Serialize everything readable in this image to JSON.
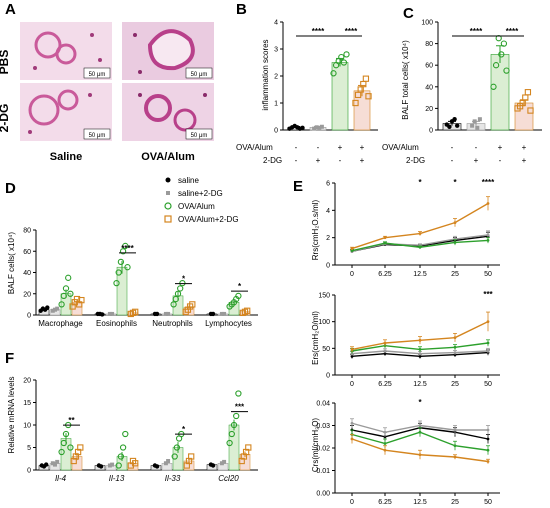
{
  "colors": {
    "saline": "#000000",
    "saline_2dg": "#9a9a9a",
    "ova": "#2ca02c",
    "ova_2dg": "#d4851f",
    "ova_bar": "#dbeed3",
    "ova_2dg_bar": "#f6ddd6",
    "tissue": "#c95a9a"
  },
  "panel_a": {
    "label": "A",
    "row_labels": [
      "PBS",
      "2-DG"
    ],
    "col_labels": [
      "Saline",
      "OVA/Alum"
    ],
    "scale_bar": "50 μm"
  },
  "treatment_table": {
    "rows": [
      {
        "label": "OVA/Alum",
        "marks": [
          "-",
          "-",
          "+",
          "+"
        ]
      },
      {
        "label": "2-DG",
        "marks": [
          "-",
          "+",
          "-",
          "+"
        ]
      }
    ]
  },
  "chart_data": [
    {
      "id": "B",
      "label": "B",
      "type": "bar",
      "ylabel": "inflammation scores",
      "ylim": [
        0,
        4
      ],
      "yticks": [
        "0",
        "1",
        "2",
        "3",
        "4"
      ],
      "means": [
        0.1,
        0.1,
        2.5,
        1.45
      ],
      "errors": [
        0.03,
        0.03,
        0.15,
        0.2
      ],
      "points": [
        [
          0.05,
          0.1,
          0.15,
          0.1,
          0.05,
          0.08
        ],
        [
          0.05,
          0.1,
          0.08,
          0.12
        ],
        [
          2.1,
          2.4,
          2.55,
          2.7,
          2.5,
          2.8
        ],
        [
          1.0,
          1.3,
          1.5,
          1.7,
          1.9,
          1.25
        ]
      ],
      "significance": [
        {
          "from": 0,
          "to": 2,
          "label": "****"
        },
        {
          "from": 2,
          "to": 3,
          "label": "****"
        }
      ]
    },
    {
      "id": "C",
      "label": "C",
      "type": "bar",
      "ylabel": "BALF total cells( x10⁴)",
      "ylim": [
        0,
        100
      ],
      "yticks": [
        "0",
        "20",
        "40",
        "60",
        "80",
        "100"
      ],
      "means": [
        6,
        6,
        70,
        25
      ],
      "errors": [
        2,
        2,
        8,
        3
      ],
      "points": [
        [
          5,
          3,
          8,
          10,
          4
        ],
        [
          4,
          8,
          2,
          10
        ],
        [
          40,
          60,
          85,
          70,
          80,
          55
        ],
        [
          20,
          22,
          25,
          30,
          35,
          18
        ]
      ],
      "significance": [
        {
          "from": 0,
          "to": 2,
          "label": "****"
        },
        {
          "from": 2,
          "to": 3,
          "label": "****"
        }
      ]
    },
    {
      "id": "D",
      "label": "D",
      "type": "bar",
      "ylabel": "BALF  cells( x10⁴)",
      "ylim": [
        0,
        80
      ],
      "yticks": [
        "0",
        "20",
        "40",
        "60",
        "80"
      ],
      "categories": [
        "Macrophage",
        "Eosinophils",
        "Neutrophils",
        "Lymphocytes"
      ],
      "legend": [
        "saline",
        "saline+2-DG",
        "OVA/Alum",
        "OVA/Alum+2-DG"
      ],
      "means": [
        [
          5,
          5,
          20,
          12
        ],
        [
          1,
          1,
          45,
          2
        ],
        [
          1,
          1,
          18,
          7
        ],
        [
          1,
          1,
          12,
          3
        ]
      ],
      "errors": [
        [
          1,
          1,
          4,
          2
        ],
        [
          0.5,
          0.5,
          6,
          1
        ],
        [
          0.5,
          0.5,
          4,
          2
        ],
        [
          0.5,
          0.5,
          3,
          1
        ]
      ],
      "points": [
        [
          [
            4,
            6,
            5,
            7
          ],
          [
            4,
            5,
            6
          ],
          [
            10,
            18,
            25,
            35,
            20
          ],
          [
            8,
            12,
            15,
            10,
            14
          ]
        ],
        [
          [
            1,
            1,
            0.5
          ],
          [
            1,
            1
          ],
          [
            30,
            40,
            50,
            60,
            65,
            45
          ],
          [
            1,
            2,
            3
          ]
        ],
        [
          [
            1,
            1
          ],
          [
            1,
            1
          ],
          [
            10,
            15,
            20,
            25,
            30
          ],
          [
            3,
            5,
            8,
            10
          ]
        ],
        [
          [
            1,
            1
          ],
          [
            1,
            1
          ],
          [
            8,
            10,
            12,
            15,
            18
          ],
          [
            2,
            3,
            4
          ]
        ]
      ],
      "significance": [
        {
          "category": 1,
          "label": "****"
        },
        {
          "category": 2,
          "label": "*"
        },
        {
          "category": 3,
          "label": "*"
        }
      ]
    },
    {
      "id": "E1",
      "label": "E",
      "type": "line",
      "ylabel": "Rrs(cmH₂O.s/ml)",
      "x": [
        "0",
        "6.25",
        "12.5",
        "25",
        "50"
      ],
      "ylim": [
        0,
        6
      ],
      "yticks": [
        "0",
        "2",
        "4",
        "6"
      ],
      "series": [
        {
          "values": [
            1.0,
            1.5,
            1.4,
            1.8,
            2.1
          ],
          "errors": [
            0.1,
            0.1,
            0.1,
            0.2,
            0.3
          ]
        },
        {
          "values": [
            1.0,
            1.55,
            1.45,
            1.9,
            2.2
          ],
          "errors": [
            0.1,
            0.1,
            0.1,
            0.2,
            0.3
          ]
        },
        {
          "values": [
            1.05,
            1.6,
            1.3,
            1.65,
            1.8
          ],
          "errors": [
            0.1,
            0.1,
            0.1,
            0.2,
            0.2
          ]
        },
        {
          "values": [
            1.2,
            2.0,
            2.3,
            3.1,
            4.5
          ],
          "errors": [
            0.1,
            0.1,
            0.15,
            0.3,
            0.5
          ]
        }
      ],
      "significance": [
        "",
        "",
        "*",
        "*",
        "****"
      ]
    },
    {
      "id": "E2",
      "type": "line",
      "ylabel": "Ers(cmH₂O/ml)",
      "x": [
        "0",
        "6.25",
        "12.5",
        "25",
        "50"
      ],
      "ylim": [
        0,
        150
      ],
      "yticks": [
        "0",
        "50",
        "100",
        "150"
      ],
      "series": [
        {
          "values": [
            35,
            40,
            35,
            38,
            42
          ],
          "errors": [
            4,
            4,
            4,
            4,
            5
          ]
        },
        {
          "values": [
            40,
            45,
            40,
            42,
            45
          ],
          "errors": [
            4,
            4,
            4,
            4,
            5
          ]
        },
        {
          "values": [
            45,
            55,
            48,
            52,
            60
          ],
          "errors": [
            5,
            5,
            5,
            5,
            6
          ]
        },
        {
          "values": [
            48,
            60,
            65,
            70,
            100
          ],
          "errors": [
            5,
            6,
            7,
            8,
            18
          ]
        }
      ],
      "significance": [
        "",
        "",
        "",
        "",
        "***"
      ]
    },
    {
      "id": "E3",
      "type": "line",
      "ylabel": "Crs(ml/cmH₂O)",
      "x": [
        "0",
        "6.25",
        "12.5",
        "25",
        "50"
      ],
      "ylim": [
        0,
        0.04
      ],
      "yticks": [
        "0.00",
        "0.01",
        "0.02",
        "0.03",
        "0.04"
      ],
      "series": [
        {
          "values": [
            0.028,
            0.025,
            0.029,
            0.027,
            0.024
          ],
          "errors": [
            0.002,
            0.002,
            0.002,
            0.002,
            0.002
          ]
        },
        {
          "values": [
            0.031,
            0.027,
            0.03,
            0.028,
            0.028
          ],
          "errors": [
            0.002,
            0.002,
            0.002,
            0.002,
            0.002
          ]
        },
        {
          "values": [
            0.026,
            0.022,
            0.027,
            0.021,
            0.019
          ],
          "errors": [
            0.002,
            0.002,
            0.002,
            0.002,
            0.002
          ]
        },
        {
          "values": [
            0.024,
            0.019,
            0.017,
            0.016,
            0.014
          ],
          "errors": [
            0.002,
            0.002,
            0.002,
            0.001,
            0.001
          ]
        }
      ],
      "significance": [
        "",
        "",
        "*",
        "",
        ""
      ]
    },
    {
      "id": "F",
      "label": "F",
      "type": "bar",
      "ylabel": "Relative mRNA levels",
      "ylim": [
        0,
        20
      ],
      "yticks": [
        "0",
        "5",
        "10",
        "15",
        "20"
      ],
      "categories": [
        "Il-4",
        "Il-13",
        "Il-33",
        "Ccl20"
      ],
      "means": [
        [
          1,
          1.5,
          7,
          3
        ],
        [
          1,
          1,
          3,
          1.5
        ],
        [
          1,
          1.5,
          5,
          2
        ],
        [
          1.2,
          1.5,
          10,
          3.5
        ]
      ],
      "errors": [
        [
          0.2,
          0.3,
          1.2,
          0.8
        ],
        [
          0.2,
          0.2,
          1,
          0.5
        ],
        [
          0.2,
          0.3,
          1.2,
          0.5
        ],
        [
          0.2,
          0.3,
          1.2,
          0.6
        ]
      ],
      "points": [
        [
          [
            1,
            0.8,
            1.2
          ],
          [
            1.5,
            1.2,
            1.8
          ],
          [
            4,
            6,
            8,
            10,
            5
          ],
          [
            2,
            3,
            4,
            5
          ]
        ],
        [
          [
            1,
            0.8
          ],
          [
            1,
            1.2
          ],
          [
            1,
            3,
            5,
            8
          ],
          [
            1,
            2,
            1.5
          ]
        ],
        [
          [
            1,
            0.8
          ],
          [
            1.5,
            2
          ],
          [
            3,
            5,
            7,
            8
          ],
          [
            1,
            2,
            3
          ]
        ],
        [
          [
            1.2,
            1
          ],
          [
            1.5,
            1.8
          ],
          [
            6,
            8,
            10,
            12,
            17
          ],
          [
            2,
            3,
            4,
            5
          ]
        ]
      ],
      "significance": [
        {
          "category": 0,
          "label": "**"
        },
        {
          "category": 2,
          "label": "*"
        },
        {
          "category": 3,
          "label": "***"
        }
      ]
    }
  ]
}
